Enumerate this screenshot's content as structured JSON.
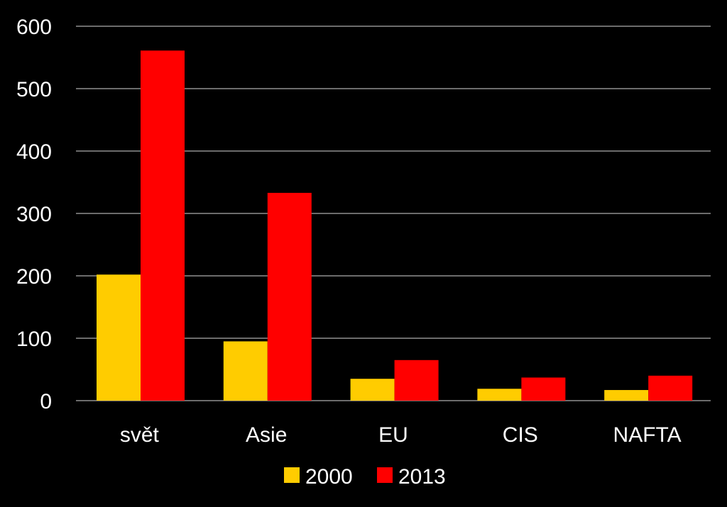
{
  "chart_data": {
    "type": "bar",
    "categories": [
      "svět",
      "Asie",
      "EU",
      "CIS",
      "NAFTA"
    ],
    "series": [
      {
        "name": "2000",
        "color": "#ffcc00",
        "values": [
          202,
          95,
          35,
          19,
          17
        ]
      },
      {
        "name": "2013",
        "color": "#ff0000",
        "values": [
          561,
          333,
          65,
          37,
          40
        ]
      }
    ],
    "ylim": [
      0,
      600
    ],
    "yticks": [
      "0",
      "100",
      "200",
      "300",
      "400",
      "500",
      "600"
    ],
    "grid": true,
    "legend": "bottom-center",
    "background": "#000000",
    "text_color": "#ffffff"
  }
}
